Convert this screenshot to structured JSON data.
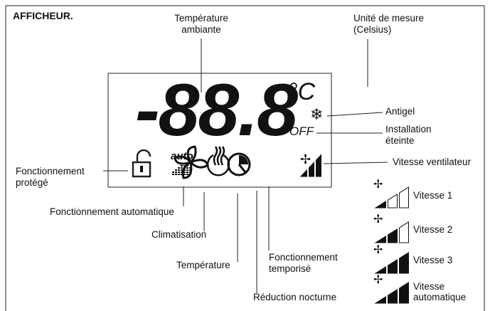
{
  "title": "AFFICHEUR.",
  "display": {
    "digits": "-88.8",
    "unit": "°C",
    "auto": "auto",
    "off": "OFF"
  },
  "labels": [
    {
      "lines": [
        "Température",
        "ambiante"
      ]
    },
    {
      "lines": [
        "Unité de mesure",
        "(Celsius)"
      ]
    },
    {
      "lines": [
        "Antigel"
      ]
    },
    {
      "lines": [
        "Installation",
        "éteinte"
      ]
    },
    {
      "lines": [
        "Vitesse ventilateur"
      ]
    },
    {
      "lines": [
        "Fonctionnement",
        "protégé"
      ]
    },
    {
      "lines": [
        "Fonctionnement automatique"
      ]
    },
    {
      "lines": [
        "Climatisation"
      ]
    },
    {
      "lines": [
        "Température"
      ]
    },
    {
      "lines": [
        "Fonctionnement",
        "temporisé"
      ]
    },
    {
      "lines": [
        "Réduction nocturne"
      ]
    }
  ],
  "speeds": [
    {
      "lines": [
        "Vitesse 1"
      ]
    },
    {
      "lines": [
        "Vitesse 2"
      ]
    },
    {
      "lines": [
        "Vitesse 3"
      ]
    },
    {
      "lines": [
        "Vitesse",
        "automatique"
      ]
    }
  ]
}
